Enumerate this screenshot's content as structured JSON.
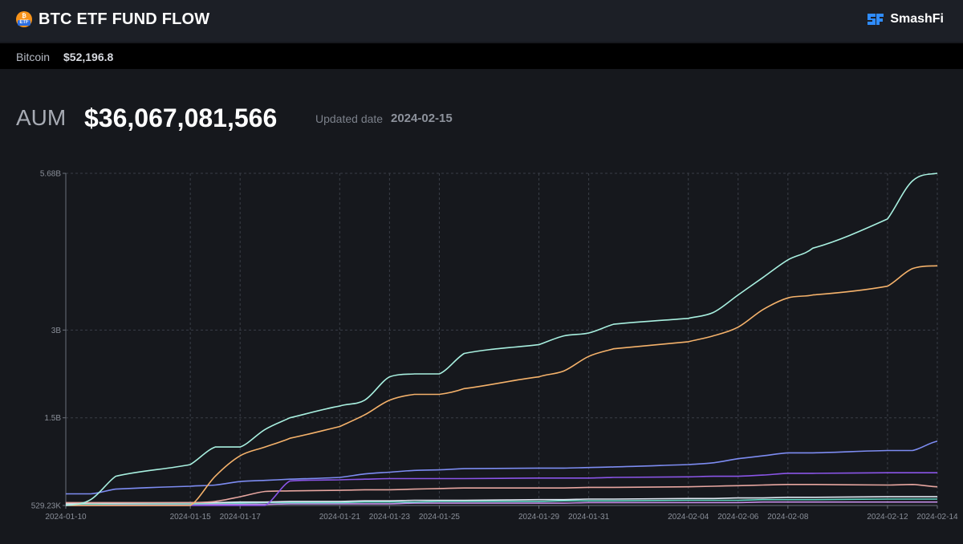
{
  "header": {
    "title": "BTC ETF FUND FLOW",
    "brand": "SmashFi",
    "badge_top": "₿",
    "badge_bottom": "ETF"
  },
  "price": {
    "asset": "Bitcoin",
    "value": "$52,196.8"
  },
  "summary": {
    "aum_label": "AUM",
    "aum_value": "$36,067,081,566",
    "updated_label": "Updated date",
    "updated_value": "2024-02-15"
  },
  "colors": {
    "background": "#16181d",
    "topbar": "#1c1f26",
    "grid": "#3a3e47",
    "axis_text": "#8a8f99"
  },
  "chart_data": {
    "type": "line",
    "title": "",
    "xlabel": "",
    "ylabel": "",
    "grid": true,
    "x_tick_labels": [
      "2024-01-10",
      "2024-01-15",
      "2024-01-17",
      "2024-01-21",
      "2024-01-23",
      "2024-01-25",
      "2024-01-29",
      "2024-01-31",
      "2024-02-04",
      "2024-02-06",
      "2024-02-08",
      "2024-02-12",
      "2024-02-14"
    ],
    "y_tick_labels": [
      "529.23K",
      "1.5B",
      "3B",
      "5.68B"
    ],
    "y_tick_values": [
      0.00052923,
      1.5,
      3.0,
      5.68
    ],
    "ylim": [
      0.00052923,
      5.68
    ],
    "x": [
      "2024-01-10",
      "2024-01-11",
      "2024-01-12",
      "2024-01-15",
      "2024-01-16",
      "2024-01-17",
      "2024-01-18",
      "2024-01-19",
      "2024-01-21",
      "2024-01-22",
      "2024-01-23",
      "2024-01-24",
      "2024-01-25",
      "2024-01-26",
      "2024-01-29",
      "2024-01-30",
      "2024-01-31",
      "2024-02-01",
      "2024-02-04",
      "2024-02-05",
      "2024-02-06",
      "2024-02-07",
      "2024-02-08",
      "2024-02-09",
      "2024-02-12",
      "2024-02-13",
      "2024-02-14"
    ],
    "series": [
      {
        "color": "#a8f0e0",
        "values": [
          0.0,
          0.1,
          0.5,
          0.7,
          1.0,
          1.0,
          1.3,
          1.5,
          1.7,
          1.8,
          2.2,
          2.25,
          2.25,
          2.6,
          2.75,
          2.9,
          2.95,
          3.1,
          3.2,
          3.3,
          3.6,
          3.9,
          4.2,
          4.4,
          4.9,
          5.55,
          5.68
        ]
      },
      {
        "color": "#f5b26b",
        "values": [
          0.0,
          0.0,
          0.0,
          0.0,
          0.5,
          0.85,
          1.0,
          1.15,
          1.35,
          1.55,
          1.8,
          1.9,
          1.9,
          2.0,
          2.2,
          2.3,
          2.55,
          2.68,
          2.8,
          2.9,
          3.05,
          3.35,
          3.55,
          3.6,
          3.75,
          4.05,
          4.1
        ]
      },
      {
        "color": "#7d8cf2",
        "values": [
          0.2,
          0.2,
          0.28,
          0.33,
          0.35,
          0.41,
          0.43,
          0.45,
          0.48,
          0.54,
          0.57,
          0.6,
          0.61,
          0.63,
          0.64,
          0.64,
          0.65,
          0.66,
          0.7,
          0.73,
          0.8,
          0.85,
          0.9,
          0.9,
          0.94,
          0.94,
          1.1
        ]
      },
      {
        "color": "#8a55e8",
        "values": [
          0.0,
          0.0,
          0.0,
          0.0,
          0.0,
          0.0,
          0.0,
          0.42,
          0.44,
          0.45,
          0.46,
          0.46,
          0.46,
          0.46,
          0.47,
          0.47,
          0.47,
          0.48,
          0.49,
          0.5,
          0.5,
          0.52,
          0.55,
          0.55,
          0.56,
          0.56,
          0.56
        ]
      },
      {
        "color": "#e7a6a0",
        "values": [
          0.05,
          0.05,
          0.05,
          0.05,
          0.07,
          0.15,
          0.24,
          0.25,
          0.26,
          0.27,
          0.27,
          0.28,
          0.29,
          0.3,
          0.3,
          0.3,
          0.31,
          0.31,
          0.32,
          0.33,
          0.34,
          0.35,
          0.36,
          0.36,
          0.35,
          0.36,
          0.32
        ]
      },
      {
        "color": "#dfe7f2",
        "values": [
          0.03,
          0.04,
          0.04,
          0.05,
          0.05,
          0.06,
          0.06,
          0.07,
          0.07,
          0.08,
          0.08,
          0.09,
          0.09,
          0.09,
          0.1,
          0.1,
          0.11,
          0.11,
          0.12,
          0.12,
          0.13,
          0.13,
          0.14,
          0.14,
          0.15,
          0.15,
          0.15
        ]
      },
      {
        "color": "#62d6c3",
        "values": [
          0.02,
          0.02,
          0.03,
          0.03,
          0.04,
          0.04,
          0.05,
          0.05,
          0.05,
          0.06,
          0.06,
          0.06,
          0.07,
          0.07,
          0.07,
          0.08,
          0.08,
          0.08,
          0.09,
          0.09,
          0.09,
          0.1,
          0.1,
          0.1,
          0.11,
          0.11,
          0.11
        ]
      },
      {
        "color": "#c48ee8",
        "values": [
          0.01,
          0.01,
          0.01,
          0.02,
          0.02,
          0.02,
          0.02,
          0.03,
          0.03,
          0.03,
          0.03,
          0.04,
          0.04,
          0.04,
          0.04,
          0.04,
          0.05,
          0.05,
          0.05,
          0.05,
          0.05,
          0.06,
          0.06,
          0.06,
          0.06,
          0.06,
          0.06
        ]
      }
    ]
  }
}
